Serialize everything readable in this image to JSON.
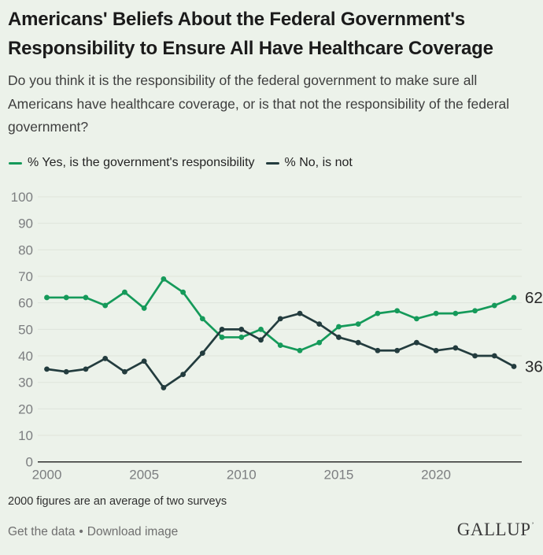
{
  "theme": {
    "background": "#ecf2ea",
    "grid": "#dfe4db",
    "axis": "#2e2e2e",
    "tick_text": "#7c7e80",
    "title_text": "#1b1b1b",
    "body_text": "#3e3e3e",
    "legend_text": "#242424",
    "end_label_text": "#282828",
    "footnote_text": "#303030",
    "link_text": "#6f6f6f",
    "brand_text": "#3b3b3b"
  },
  "chart_data": {
    "type": "line",
    "title": "Americans' Beliefs About the Federal Government's Responsibility to Ensure All Have Healthcare Coverage",
    "subtitle": "Do you think it is the responsibility of the federal government to make sure all Americans have healthcare coverage, or is that not the responsibility of the federal government?",
    "x": [
      2000,
      2001,
      2002,
      2003,
      2004,
      2005,
      2006,
      2007,
      2008,
      2009,
      2010,
      2011,
      2012,
      2013,
      2014,
      2015,
      2016,
      2017,
      2018,
      2019,
      2020,
      2021,
      2022,
      2023,
      2024
    ],
    "xticks": [
      2000,
      2005,
      2010,
      2015,
      2020
    ],
    "yticks": [
      0,
      10,
      20,
      30,
      40,
      50,
      60,
      70,
      80,
      90,
      100
    ],
    "ylim": [
      0,
      100
    ],
    "grid": true,
    "legend_position": "top",
    "series": [
      {
        "name": "% Yes, is the government's responsibility",
        "color": "#159a5a",
        "values": [
          62,
          62,
          62,
          59,
          64,
          58,
          69,
          64,
          54,
          47,
          47,
          50,
          44,
          42,
          45,
          51,
          52,
          56,
          57,
          54,
          56,
          56,
          57,
          59,
          62
        ],
        "end_label": "62"
      },
      {
        "name": "% No, is not",
        "color": "#233c3e",
        "values": [
          35,
          34,
          35,
          39,
          34,
          38,
          28,
          33,
          41,
          50,
          50,
          46,
          54,
          56,
          52,
          47,
          45,
          42,
          42,
          45,
          42,
          43,
          40,
          40,
          36
        ],
        "end_label": "36"
      }
    ],
    "footnote": "2000 figures are an average of two surveys"
  },
  "footer": {
    "get_data_label": "Get the data",
    "separator": "•",
    "download_label": "Download image",
    "brand": "GALLUP",
    "brand_mark": "’"
  }
}
